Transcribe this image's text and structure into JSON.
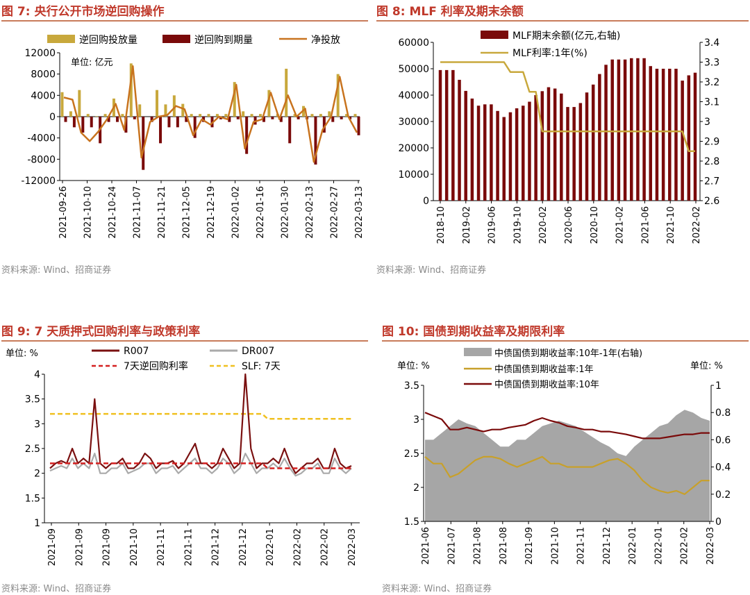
{
  "panels": [
    {
      "title": "图 7:  央行公开市场逆回购操作",
      "source": "资料来源:  Wind、招商证券",
      "unit": "单位:  亿元",
      "legend": [
        "逆回购投放量",
        "逆回购到期量",
        "净投放"
      ],
      "colors": {
        "inject": "#c8a83c",
        "mature": "#7a0a0a",
        "net": "#c8731e"
      }
    },
    {
      "title": "图 8:  MLF 利率及期末余额",
      "source": "资料来源:  Wind、招商证券",
      "legend": [
        "MLF期末余额(亿元,右轴)",
        "MLF利率:1年(%)"
      ],
      "colors": {
        "bar": "#7a0a0a",
        "line": "#c8a83c"
      }
    },
    {
      "title": "图 9:  7 天质押式回购利率与政策利率",
      "source": "资料来源:  Wind、招商证券",
      "unit": "单位:  %",
      "legend": [
        "R007",
        "DR007",
        "7天逆回购利率",
        "SLF:  7天"
      ],
      "colors": {
        "r007": "#7a1010",
        "dr007": "#aaaaaa",
        "rev": "#d42020",
        "slf": "#f0c020"
      }
    },
    {
      "title": "图 10:  国债到期收益率及期限利率",
      "source": "资料来源:  Wind、招商证券",
      "unit_left": "单位:  %",
      "unit_right": "单位:  %",
      "legend": [
        "中债国债到期收益率:10年-1年(右轴)",
        "中债国债到期收益率:1年",
        "中债国债到期收益率:10年"
      ],
      "colors": {
        "spread": "#a6a6a6",
        "y1": "#c8a02a",
        "y10": "#7a0a0a"
      }
    }
  ],
  "chart_data": [
    {
      "type": "bar",
      "title": "央行公开市场逆回购操作",
      "ylim": [
        -12000,
        12000
      ],
      "yticks": [
        12000,
        8000,
        4000,
        0,
        -4000,
        -8000,
        -12000
      ],
      "x_tick_labels": [
        "2021-09-26",
        "2021-10-10",
        "2021-10-24",
        "2021-11-07",
        "2021-11-21",
        "2021-12-05",
        "2021-12-19",
        "2022-01-02",
        "2022-01-16",
        "2022-01-30",
        "2022-02-13",
        "2022-02-27",
        "2022-03-13"
      ],
      "series": [
        {
          "name": "逆回购投放量",
          "values": [
            4600,
            1000,
            5000,
            500,
            100,
            500,
            3400,
            500,
            10000,
            2300,
            0,
            5000,
            2300,
            4000,
            2400,
            500,
            500,
            500,
            500,
            500,
            6500,
            1000,
            500,
            500,
            5000,
            500,
            9000,
            500,
            2000,
            500,
            500,
            1000,
            8000,
            500,
            500
          ]
        },
        {
          "name": "逆回购到期量",
          "values": [
            -1000,
            -2000,
            -3000,
            -2000,
            -5000,
            -1000,
            -1000,
            -3000,
            -500,
            -10000,
            -1000,
            -5000,
            -2000,
            -2000,
            -1000,
            -4000,
            -1000,
            -2000,
            -500,
            -1000,
            -500,
            -7000,
            -1500,
            -1000,
            -500,
            -1000,
            -5000,
            -500,
            -500,
            -9000,
            -3000,
            -1000,
            -500,
            -500,
            -3500
          ]
        },
        {
          "name": "净投放",
          "values": [
            3600,
            3200,
            -3000,
            -4600,
            -2800,
            -500,
            2400,
            -2500,
            9500,
            -7700,
            -1000,
            0,
            300,
            2000,
            1400,
            -3500,
            -500,
            -1500,
            0,
            -500,
            6000,
            -6000,
            -1000,
            -500,
            4500,
            -500,
            4000,
            0,
            1500,
            -8500,
            -2500,
            0,
            7500,
            0,
            -3000
          ]
        }
      ]
    },
    {
      "type": "bar",
      "title": "MLF 利率及期末余额",
      "ylim_left": [
        0,
        60000
      ],
      "ylim_right": [
        2.6,
        3.4
      ],
      "yticks_left": [
        60000,
        50000,
        40000,
        30000,
        20000,
        10000,
        0
      ],
      "yticks_right": [
        3.4,
        3.3,
        3.2,
        3.1,
        3.0,
        2.9,
        2.8,
        2.7,
        2.6
      ],
      "x_tick_labels": [
        "2018-10",
        "2019-02",
        "2019-06",
        "2019-10",
        "2020-02",
        "2020-06",
        "2020-10",
        "2021-02",
        "2021-06",
        "2021-10",
        "2022-02"
      ],
      "series": [
        {
          "name": "MLF期末余额(亿元,右轴)",
          "values": [
            49500,
            49500,
            49500,
            45800,
            41600,
            38700,
            36000,
            36500,
            36500,
            34000,
            31700,
            33500,
            35000,
            36000,
            37500,
            40000,
            41500,
            43000,
            42500,
            40600,
            35500,
            35500,
            37000,
            41000,
            44000,
            48000,
            51500,
            53500,
            53500,
            53500,
            54000,
            54000,
            54000,
            51000,
            50000,
            50000,
            50000,
            50000,
            45500,
            47500,
            48500
          ]
        },
        {
          "name": "MLF利率:1年(%)",
          "values": [
            3.3,
            3.3,
            3.3,
            3.3,
            3.3,
            3.3,
            3.3,
            3.3,
            3.3,
            3.3,
            3.3,
            3.25,
            3.25,
            3.25,
            3.15,
            3.15,
            2.95,
            2.95,
            2.95,
            2.95,
            2.95,
            2.95,
            2.95,
            2.95,
            2.95,
            2.95,
            2.95,
            2.95,
            2.95,
            2.95,
            2.95,
            2.95,
            2.95,
            2.95,
            2.95,
            2.95,
            2.95,
            2.95,
            2.95,
            2.85,
            2.85
          ]
        }
      ]
    },
    {
      "type": "line",
      "title": "7 天质押式回购利率与政策利率",
      "ylim": [
        1.0,
        4.0
      ],
      "yticks": [
        4.0,
        3.5,
        3.0,
        2.5,
        2.0,
        1.5,
        1.0
      ],
      "x_tick_labels": [
        "2021-09",
        "2021-09",
        "2021-09",
        "2021-10",
        "2021-11",
        "2021-11",
        "2021-12",
        "2021-12",
        "2022-01",
        "2022-02",
        "2022-02",
        "2022-03"
      ],
      "series": [
        {
          "name": "R007",
          "values": [
            2.1,
            2.2,
            2.25,
            2.2,
            2.5,
            2.2,
            2.3,
            2.2,
            3.5,
            2.2,
            2.1,
            2.2,
            2.2,
            2.3,
            2.1,
            2.1,
            2.2,
            2.4,
            2.3,
            2.1,
            2.2,
            2.2,
            2.25,
            2.1,
            2.2,
            2.4,
            2.6,
            2.2,
            2.2,
            2.1,
            2.2,
            2.5,
            2.3,
            2.1,
            2.2,
            4.0,
            2.5,
            2.1,
            2.2,
            2.2,
            2.3,
            2.2,
            2.5,
            2.2,
            2.0,
            2.1,
            2.2,
            2.2,
            2.3,
            2.1,
            2.1,
            2.5,
            2.2,
            2.1,
            2.15
          ]
        },
        {
          "name": "DR007",
          "values": [
            2.05,
            2.1,
            2.15,
            2.1,
            2.3,
            2.1,
            2.2,
            2.1,
            2.4,
            2.0,
            2.0,
            2.1,
            2.1,
            2.2,
            2.0,
            2.05,
            2.1,
            2.2,
            2.2,
            2.0,
            2.1,
            2.1,
            2.15,
            2.0,
            2.1,
            2.2,
            2.3,
            2.1,
            2.1,
            2.0,
            2.1,
            2.3,
            2.2,
            2.0,
            2.1,
            2.4,
            2.2,
            2.0,
            2.1,
            2.1,
            2.2,
            2.1,
            2.3,
            2.1,
            1.95,
            2.0,
            2.1,
            2.1,
            2.2,
            2.0,
            2.0,
            2.3,
            2.1,
            2.0,
            2.1
          ]
        },
        {
          "name": "7天逆回购利率",
          "values": [
            2.2,
            2.2,
            2.2,
            2.2,
            2.2,
            2.2,
            2.2,
            2.2,
            2.2,
            2.2,
            2.2,
            2.2,
            2.2,
            2.2,
            2.2,
            2.2,
            2.2,
            2.2,
            2.2,
            2.2,
            2.2,
            2.2,
            2.2,
            2.2,
            2.2,
            2.2,
            2.2,
            2.2,
            2.2,
            2.2,
            2.2,
            2.2,
            2.2,
            2.2,
            2.2,
            2.2,
            2.2,
            2.2,
            2.2,
            2.1,
            2.1,
            2.1,
            2.1,
            2.1,
            2.1,
            2.1,
            2.1,
            2.1,
            2.1,
            2.1,
            2.1,
            2.1,
            2.1,
            2.1,
            2.1
          ]
        },
        {
          "name": "SLF:  7天",
          "values": [
            3.2,
            3.2,
            3.2,
            3.2,
            3.2,
            3.2,
            3.2,
            3.2,
            3.2,
            3.2,
            3.2,
            3.2,
            3.2,
            3.2,
            3.2,
            3.2,
            3.2,
            3.2,
            3.2,
            3.2,
            3.2,
            3.2,
            3.2,
            3.2,
            3.2,
            3.2,
            3.2,
            3.2,
            3.2,
            3.2,
            3.2,
            3.2,
            3.2,
            3.2,
            3.2,
            3.2,
            3.2,
            3.2,
            3.2,
            3.1,
            3.1,
            3.1,
            3.1,
            3.1,
            3.1,
            3.1,
            3.1,
            3.1,
            3.1,
            3.1,
            3.1,
            3.1,
            3.1,
            3.1,
            3.1
          ]
        }
      ]
    },
    {
      "type": "area",
      "title": "国债到期收益率及期限利率",
      "ylim_left": [
        1.5,
        3.5
      ],
      "ylim_right": [
        0.0,
        1.0
      ],
      "yticks_left": [
        3.5,
        3.0,
        2.5,
        2.0,
        1.5
      ],
      "yticks_right": [
        1.0,
        0.8,
        0.6,
        0.4,
        0.2,
        0.0
      ],
      "x_tick_labels": [
        "2021-06",
        "2021-07",
        "2021-08",
        "2021-08",
        "2021-09",
        "2021-10",
        "2021-11",
        "2021-12",
        "2022-01",
        "2022-01",
        "2022-02",
        "2022-03"
      ],
      "series": [
        {
          "name": "中债国债到期收益率:10年-1年(右轴)",
          "values": [
            0.6,
            0.6,
            0.65,
            0.7,
            0.75,
            0.72,
            0.7,
            0.65,
            0.6,
            0.55,
            0.55,
            0.6,
            0.6,
            0.65,
            0.7,
            0.72,
            0.74,
            0.72,
            0.7,
            0.66,
            0.62,
            0.58,
            0.55,
            0.5,
            0.48,
            0.55,
            0.6,
            0.65,
            0.7,
            0.72,
            0.78,
            0.82,
            0.8,
            0.76,
            0.74
          ]
        },
        {
          "name": "中债国债到期收益率:1年",
          "values": [
            2.45,
            2.35,
            2.35,
            2.15,
            2.2,
            2.3,
            2.4,
            2.45,
            2.45,
            2.42,
            2.35,
            2.3,
            2.35,
            2.4,
            2.45,
            2.35,
            2.35,
            2.3,
            2.3,
            2.3,
            2.3,
            2.35,
            2.4,
            2.42,
            2.35,
            2.25,
            2.1,
            2.0,
            1.95,
            1.92,
            1.95,
            1.9,
            2.0,
            2.1,
            2.1
          ]
        },
        {
          "name": "中债国债到期收益率:10年",
          "values": [
            3.1,
            3.05,
            3.0,
            2.85,
            2.85,
            2.88,
            2.85,
            2.82,
            2.85,
            2.85,
            2.88,
            2.9,
            2.92,
            2.98,
            3.02,
            2.98,
            2.95,
            2.9,
            2.88,
            2.85,
            2.85,
            2.82,
            2.82,
            2.8,
            2.78,
            2.75,
            2.72,
            2.72,
            2.72,
            2.74,
            2.76,
            2.78,
            2.78,
            2.8,
            2.8
          ]
        }
      ]
    }
  ]
}
